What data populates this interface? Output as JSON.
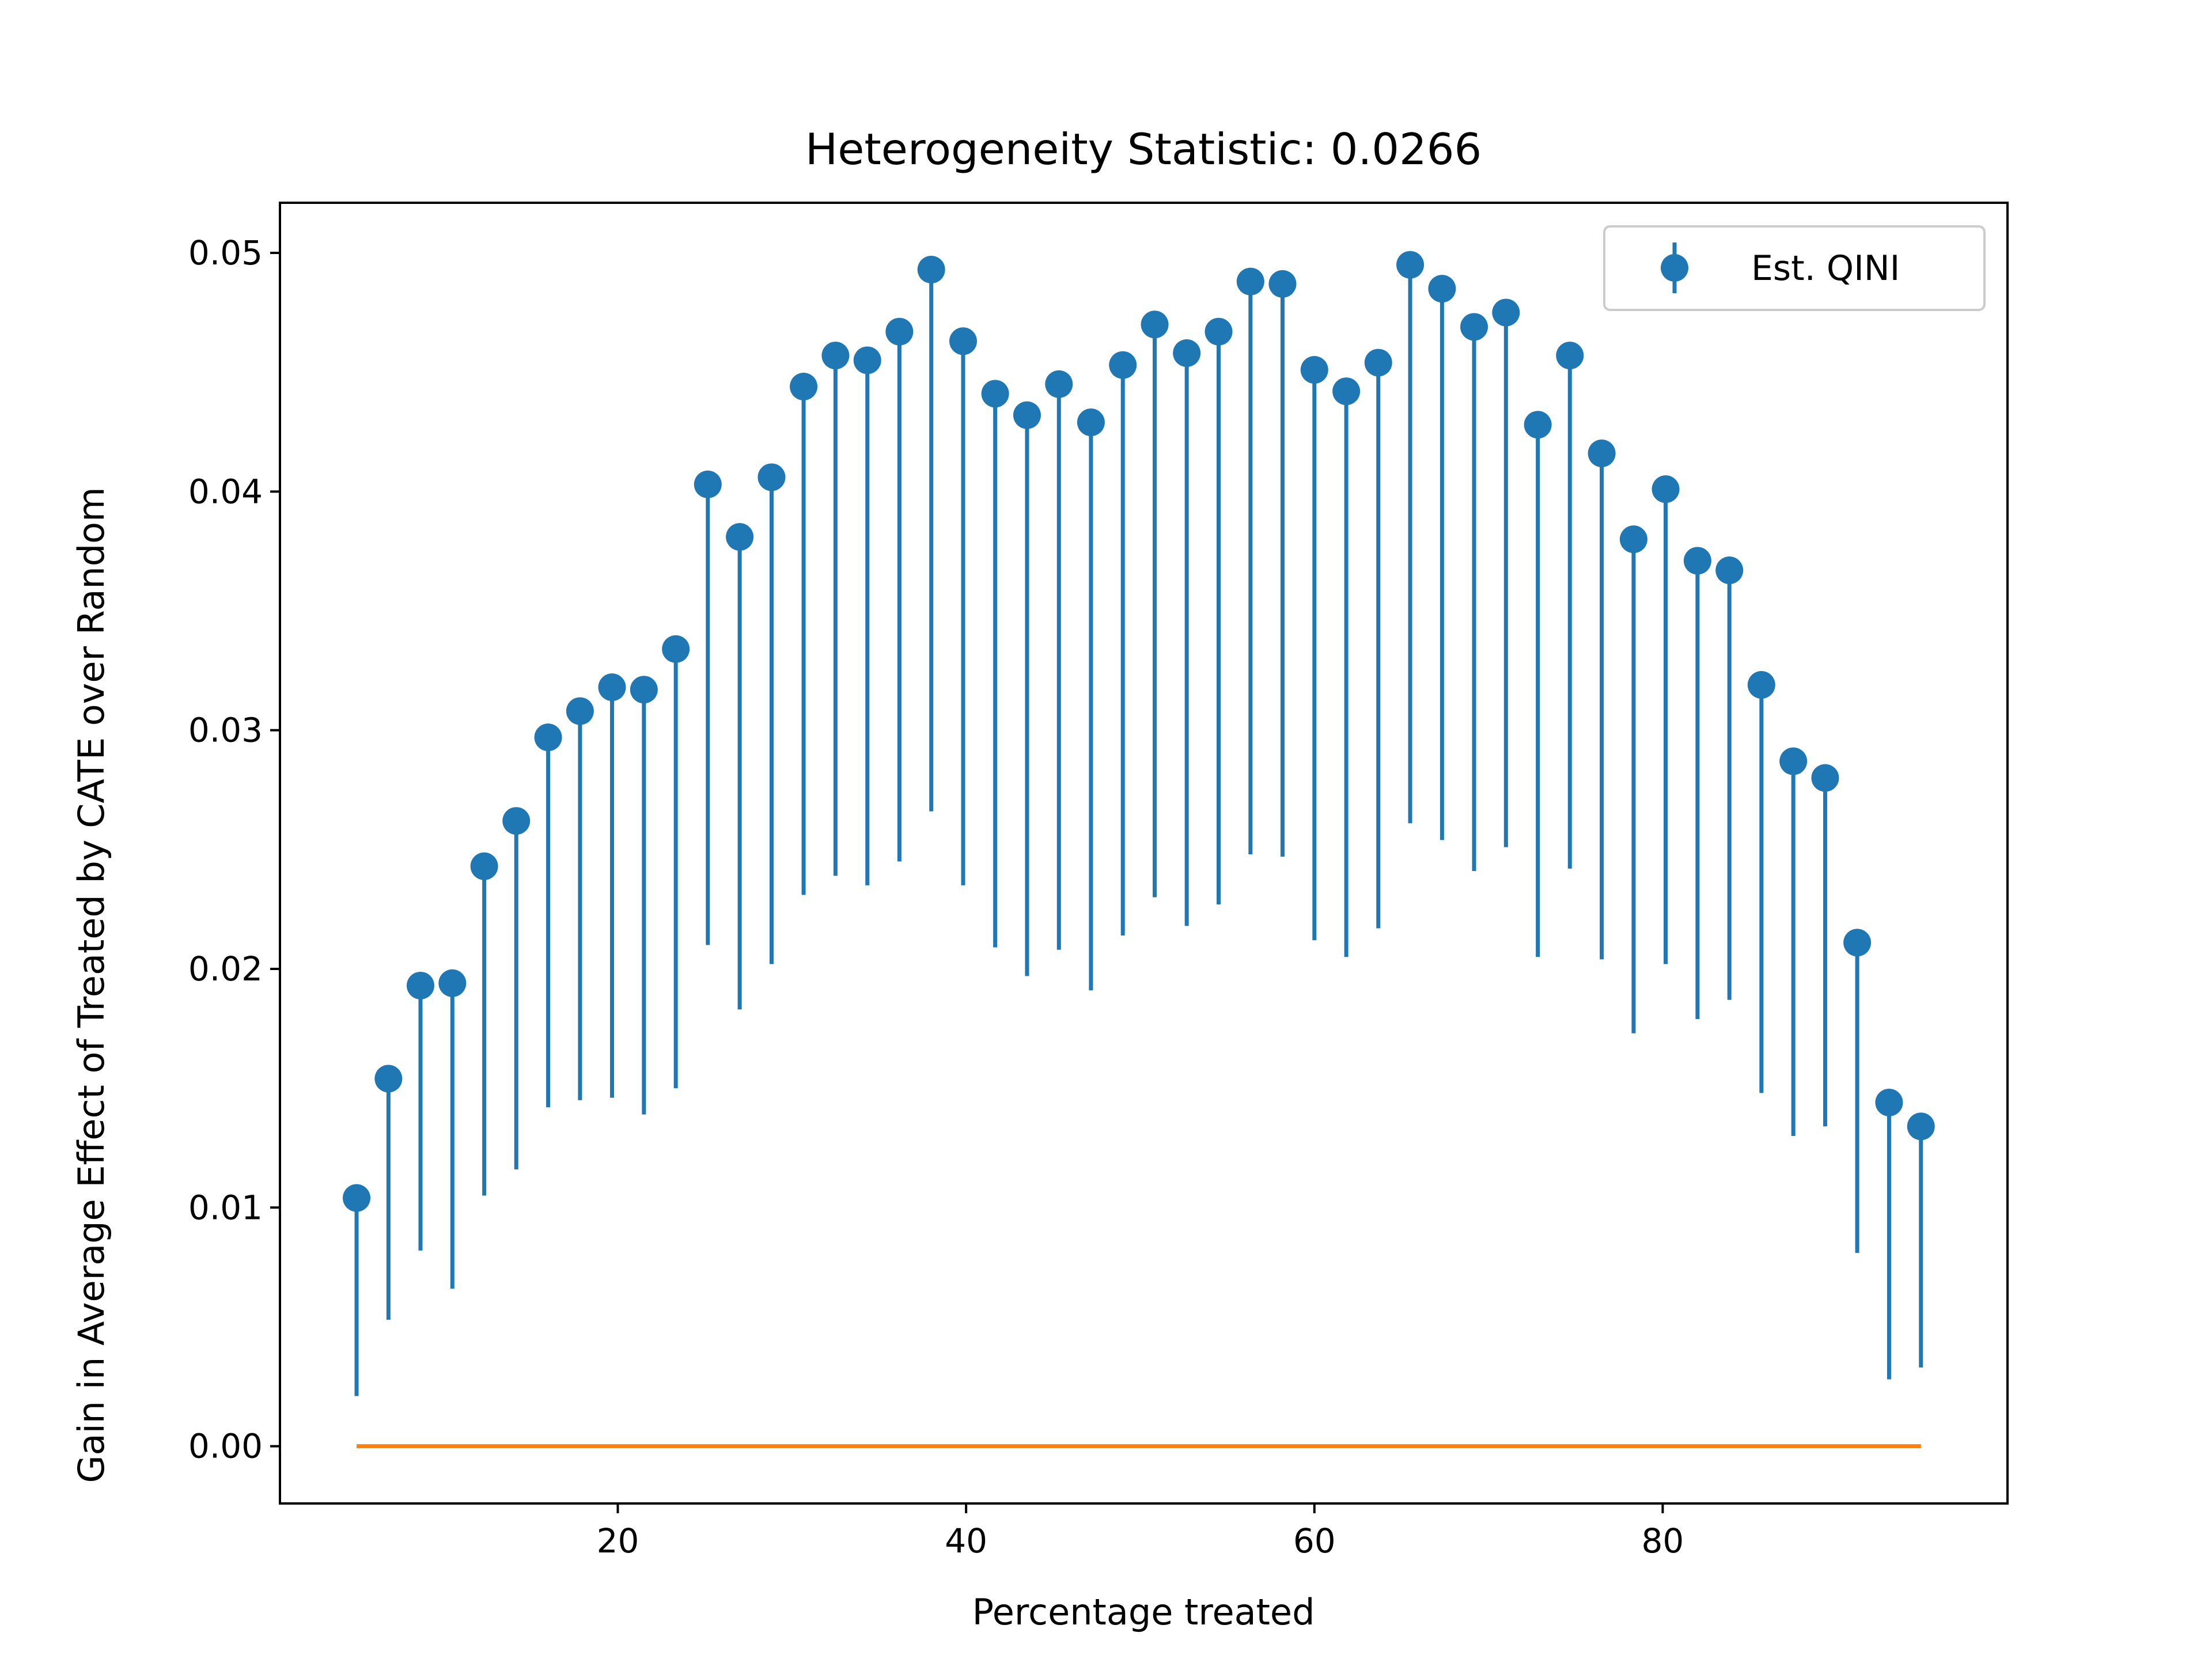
{
  "chart_data": {
    "type": "scatter",
    "title": "Heterogeneity Statistic: 0.0266",
    "xlabel": "Percentage treated",
    "ylabel": "Gain in Average Effect of Treated by CATE over Random",
    "xlim": [
      0.6,
      99.8
    ],
    "ylim": [
      -0.0024,
      0.0521
    ],
    "xticks": [
      20,
      40,
      60,
      80
    ],
    "xtick_labels": [
      "20",
      "40",
      "60",
      "80"
    ],
    "yticks": [
      0.0,
      0.01,
      0.02,
      0.03,
      0.04,
      0.05
    ],
    "ytick_labels": [
      "0.00",
      "0.01",
      "0.02",
      "0.03",
      "0.04",
      "0.05"
    ],
    "grid": false,
    "legend_position": "top-right",
    "series": [
      {
        "name": "Est. QINI",
        "kind": "errorbar",
        "color": "#1f77b4",
        "x": [
          5.0,
          6.83,
          8.67,
          10.5,
          12.33,
          14.17,
          16.0,
          17.83,
          19.67,
          21.5,
          23.33,
          25.17,
          27.0,
          28.83,
          30.67,
          32.5,
          34.33,
          36.17,
          38.0,
          39.83,
          41.67,
          43.5,
          45.33,
          47.17,
          49.0,
          50.83,
          52.67,
          54.5,
          56.33,
          58.17,
          60.0,
          61.83,
          63.67,
          65.5,
          67.33,
          69.17,
          71.0,
          72.83,
          74.67,
          76.5,
          78.33,
          80.17,
          82.0,
          83.83,
          85.67,
          87.5,
          89.33,
          91.17,
          93.0,
          94.83
        ],
        "y": [
          0.0104,
          0.0154,
          0.0193,
          0.0194,
          0.0243,
          0.0262,
          0.0297,
          0.0308,
          0.0318,
          0.0317,
          0.0334,
          0.0403,
          0.0381,
          0.0406,
          0.0444,
          0.0457,
          0.0455,
          0.0467,
          0.0493,
          0.0463,
          0.0441,
          0.0432,
          0.0445,
          0.0429,
          0.0453,
          0.047,
          0.0458,
          0.0467,
          0.0488,
          0.0487,
          0.0451,
          0.0442,
          0.0454,
          0.0495,
          0.0485,
          0.0469,
          0.0475,
          0.0428,
          0.0457,
          0.0416,
          0.038,
          0.0401,
          0.0371,
          0.0367,
          0.0319,
          0.0287,
          0.028,
          0.0211,
          0.0144,
          0.0134
        ],
        "yerr_low": [
          0.0021,
          0.0053,
          0.0082,
          0.0066,
          0.0105,
          0.0116,
          0.0142,
          0.0145,
          0.0146,
          0.0139,
          0.015,
          0.021,
          0.0183,
          0.0202,
          0.0231,
          0.0239,
          0.0235,
          0.0245,
          0.0266,
          0.0235,
          0.0209,
          0.0197,
          0.0208,
          0.0191,
          0.0214,
          0.023,
          0.0218,
          0.0227,
          0.0248,
          0.0247,
          0.0212,
          0.0205,
          0.0217,
          0.0261,
          0.0254,
          0.0241,
          0.0251,
          0.0205,
          0.0242,
          0.0204,
          0.0173,
          0.0202,
          0.0179,
          0.0187,
          0.0148,
          0.013,
          0.0134,
          0.0081,
          0.0028,
          0.0033
        ]
      },
      {
        "name": "",
        "kind": "line",
        "color": "#ff7f0e",
        "x": [
          5.0,
          94.83
        ],
        "y": [
          0.0,
          0.0
        ]
      }
    ]
  }
}
